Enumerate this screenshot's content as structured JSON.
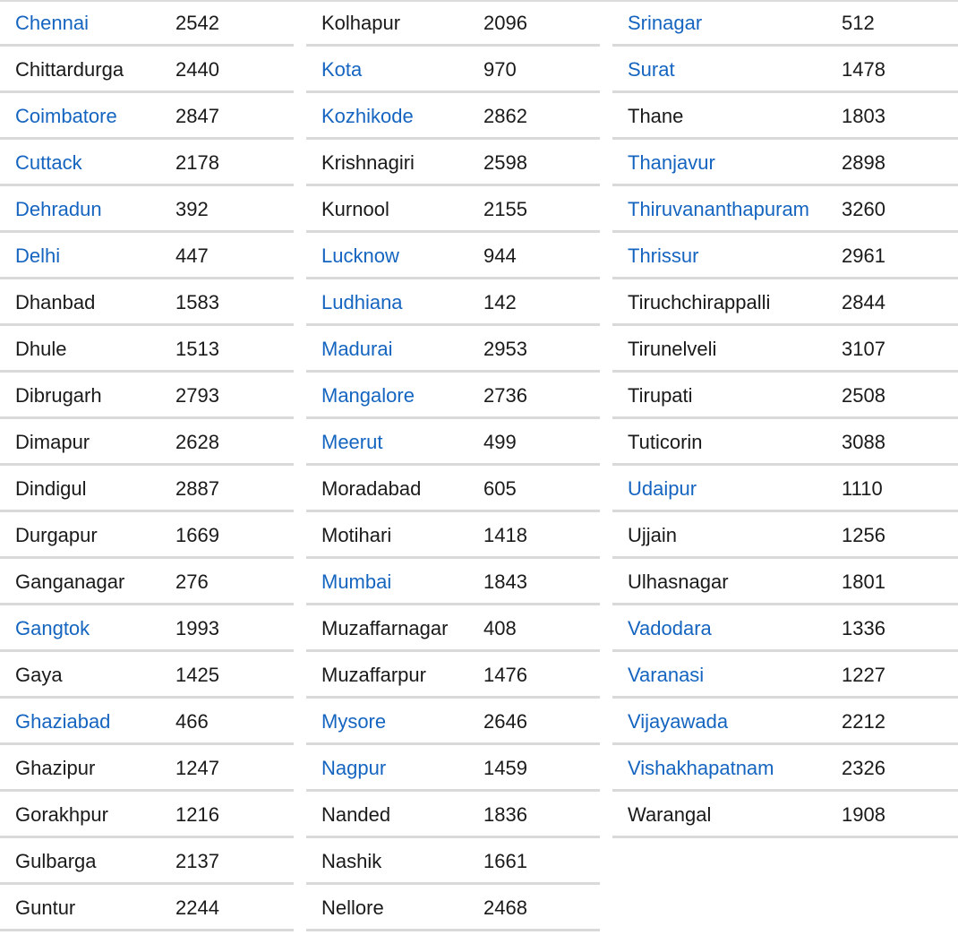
{
  "colors": {
    "link": "#1565c0",
    "text": "#1a1a1a",
    "divider": "#d9d9d9"
  },
  "columns": [
    {
      "rows": [
        {
          "city": "Chennai",
          "value": "2542",
          "link": true
        },
        {
          "city": "Chittardurga",
          "value": "2440",
          "link": false
        },
        {
          "city": "Coimbatore",
          "value": "2847",
          "link": true
        },
        {
          "city": "Cuttack",
          "value": "2178",
          "link": true
        },
        {
          "city": "Dehradun",
          "value": "392",
          "link": true
        },
        {
          "city": "Delhi",
          "value": "447",
          "link": true
        },
        {
          "city": "Dhanbad",
          "value": "1583",
          "link": false
        },
        {
          "city": "Dhule",
          "value": "1513",
          "link": false
        },
        {
          "city": "Dibrugarh",
          "value": "2793",
          "link": false
        },
        {
          "city": "Dimapur",
          "value": "2628",
          "link": false
        },
        {
          "city": "Dindigul",
          "value": "2887",
          "link": false
        },
        {
          "city": "Durgapur",
          "value": "1669",
          "link": false
        },
        {
          "city": "Ganganagar",
          "value": "276",
          "link": false
        },
        {
          "city": "Gangtok",
          "value": "1993",
          "link": true
        },
        {
          "city": "Gaya",
          "value": "1425",
          "link": false
        },
        {
          "city": "Ghaziabad",
          "value": "466",
          "link": true
        },
        {
          "city": "Ghazipur",
          "value": "1247",
          "link": false
        },
        {
          "city": "Gorakhpur",
          "value": "1216",
          "link": false
        },
        {
          "city": "Gulbarga",
          "value": "2137",
          "link": false
        },
        {
          "city": "Guntur",
          "value": "2244",
          "link": false
        }
      ]
    },
    {
      "rows": [
        {
          "city": "Kolhapur",
          "value": "2096",
          "link": false
        },
        {
          "city": "Kota",
          "value": "970",
          "link": true
        },
        {
          "city": "Kozhikode",
          "value": "2862",
          "link": true
        },
        {
          "city": "Krishnagiri",
          "value": "2598",
          "link": false
        },
        {
          "city": "Kurnool",
          "value": "2155",
          "link": false
        },
        {
          "city": "Lucknow",
          "value": "944",
          "link": true
        },
        {
          "city": "Ludhiana",
          "value": "142",
          "link": true
        },
        {
          "city": "Madurai",
          "value": "2953",
          "link": true
        },
        {
          "city": "Mangalore",
          "value": "2736",
          "link": true
        },
        {
          "city": "Meerut",
          "value": "499",
          "link": true
        },
        {
          "city": "Moradabad",
          "value": "605",
          "link": false
        },
        {
          "city": "Motihari",
          "value": "1418",
          "link": false
        },
        {
          "city": "Mumbai",
          "value": "1843",
          "link": true
        },
        {
          "city": "Muzaffarnagar",
          "value": "408",
          "link": false
        },
        {
          "city": "Muzaffarpur",
          "value": "1476",
          "link": false
        },
        {
          "city": "Mysore",
          "value": "2646",
          "link": true
        },
        {
          "city": "Nagpur",
          "value": "1459",
          "link": true
        },
        {
          "city": "Nanded",
          "value": "1836",
          "link": false
        },
        {
          "city": "Nashik",
          "value": "1661",
          "link": false
        },
        {
          "city": "Nellore",
          "value": "2468",
          "link": false
        }
      ]
    },
    {
      "rows": [
        {
          "city": "Srinagar",
          "value": "512",
          "link": true
        },
        {
          "city": "Surat",
          "value": "1478",
          "link": true
        },
        {
          "city": "Thane",
          "value": "1803",
          "link": false
        },
        {
          "city": "Thanjavur",
          "value": "2898",
          "link": true
        },
        {
          "city": "Thiruvananthapuram",
          "value": "3260",
          "link": true
        },
        {
          "city": "Thrissur",
          "value": "2961",
          "link": true
        },
        {
          "city": "Tiruchchirappalli",
          "value": "2844",
          "link": false
        },
        {
          "city": "Tirunelveli",
          "value": "3107",
          "link": false
        },
        {
          "city": "Tirupati",
          "value": "2508",
          "link": false
        },
        {
          "city": "Tuticorin",
          "value": "3088",
          "link": false
        },
        {
          "city": "Udaipur",
          "value": "1110",
          "link": true
        },
        {
          "city": "Ujjain",
          "value": "1256",
          "link": false
        },
        {
          "city": "Ulhasnagar",
          "value": "1801",
          "link": false
        },
        {
          "city": "Vadodara",
          "value": "1336",
          "link": true
        },
        {
          "city": "Varanasi",
          "value": "1227",
          "link": true
        },
        {
          "city": "Vijayawada",
          "value": "2212",
          "link": true
        },
        {
          "city": "Vishakhapatnam",
          "value": "2326",
          "link": true
        },
        {
          "city": "Warangal",
          "value": "1908",
          "link": false
        }
      ]
    }
  ]
}
